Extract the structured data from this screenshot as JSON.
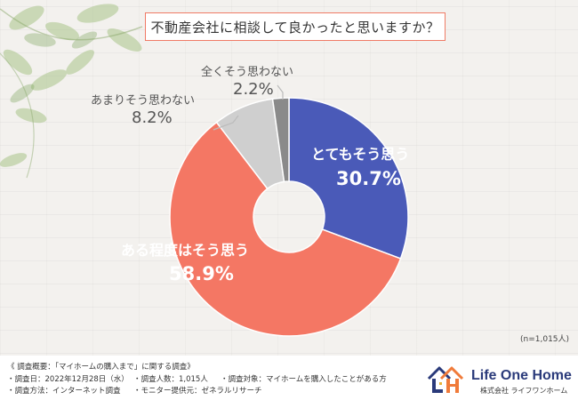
{
  "title": "不動産会社に相談して良かったと思いますか？",
  "sample_note": "(n=1,015人)",
  "colors": {
    "slice1": "#4a5ab8",
    "slice2": "#f47764",
    "slice3": "#cfcfcf",
    "slice4": "#8a8a8a",
    "title_border": "#f07b66"
  },
  "chart_data": {
    "type": "pie",
    "donut": true,
    "categories": [
      "とてもそう思う",
      "ある程度はそう思う",
      "あまりそう思わない",
      "全くそう思わない"
    ],
    "values": [
      30.7,
      58.9,
      8.2,
      2.2
    ],
    "value_labels": [
      "30.7%",
      "58.9%",
      "8.2%",
      "2.2%"
    ],
    "title": "不動産会社に相談して良かったと思いますか？"
  },
  "footer": {
    "line1": "《 調査概要：「マイホームの購入まで」に関する調査》",
    "date": "・調査日：2022年12月28日（水）",
    "count": "・調査人数：1,015人",
    "target": "・調査対象：マイホームを購入したことがある方",
    "method": "・調査方法：インターネット調査",
    "provider": "・モニター提供元：ゼネラルリサーチ"
  },
  "logo": {
    "name": "Life One Home",
    "company": "株式会社 ライフワンホーム",
    "icon": "house-lh-icon"
  },
  "decoration": {
    "icon": "leaves-icon"
  }
}
